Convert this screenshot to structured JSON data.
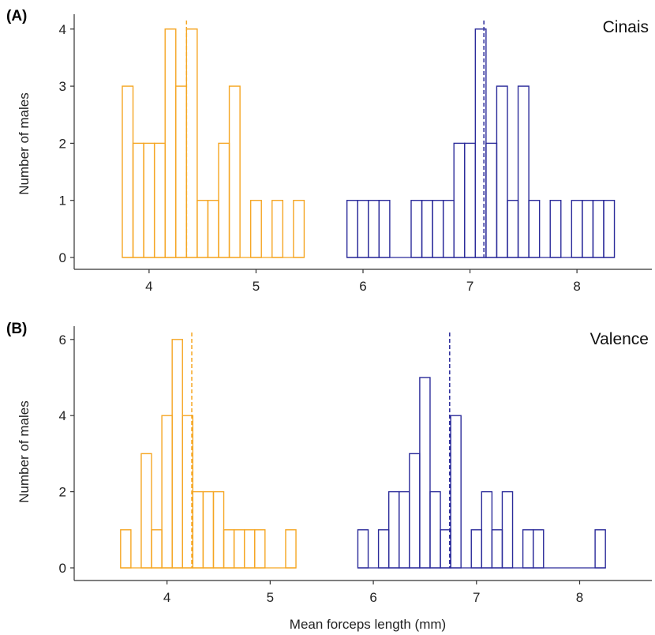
{
  "xlabel": "Mean forceps length (mm)",
  "ylabel": "Number of males",
  "colors": {
    "morph_short": "#F5A623",
    "morph_long": "#2B2B9A",
    "axis": "#333333"
  },
  "chart_data": [
    {
      "type": "bar",
      "panel_tag": "(A)",
      "site": "Cinais",
      "xlim": [
        3.3,
        8.7
      ],
      "ylim": [
        0,
        4.15
      ],
      "xticks": [
        4,
        5,
        6,
        7,
        8
      ],
      "yticks": [
        0,
        1,
        2,
        3,
        4
      ],
      "bin_width": 0.1,
      "series": [
        {
          "color": "#F5A623",
          "mean_line": 4.35,
          "bins": [
            {
              "x0": 3.75,
              "count": 3
            },
            {
              "x0": 3.85,
              "count": 2
            },
            {
              "x0": 3.95,
              "count": 2
            },
            {
              "x0": 4.05,
              "count": 2
            },
            {
              "x0": 4.15,
              "count": 4
            },
            {
              "x0": 4.25,
              "count": 3
            },
            {
              "x0": 4.35,
              "count": 4
            },
            {
              "x0": 4.45,
              "count": 1
            },
            {
              "x0": 4.55,
              "count": 1
            },
            {
              "x0": 4.65,
              "count": 2
            },
            {
              "x0": 4.75,
              "count": 3
            },
            {
              "x0": 4.95,
              "count": 1
            },
            {
              "x0": 5.15,
              "count": 1
            },
            {
              "x0": 5.35,
              "count": 1
            }
          ]
        },
        {
          "color": "#2B2B9A",
          "mean_line": 7.13,
          "bins": [
            {
              "x0": 5.85,
              "count": 1
            },
            {
              "x0": 5.95,
              "count": 1
            },
            {
              "x0": 6.05,
              "count": 1
            },
            {
              "x0": 6.15,
              "count": 1
            },
            {
              "x0": 6.45,
              "count": 1
            },
            {
              "x0": 6.55,
              "count": 1
            },
            {
              "x0": 6.65,
              "count": 1
            },
            {
              "x0": 6.75,
              "count": 1
            },
            {
              "x0": 6.85,
              "count": 2
            },
            {
              "x0": 6.95,
              "count": 2
            },
            {
              "x0": 7.05,
              "count": 4
            },
            {
              "x0": 7.15,
              "count": 2
            },
            {
              "x0": 7.25,
              "count": 3
            },
            {
              "x0": 7.35,
              "count": 1
            },
            {
              "x0": 7.45,
              "count": 3
            },
            {
              "x0": 7.55,
              "count": 1
            },
            {
              "x0": 7.75,
              "count": 1
            },
            {
              "x0": 7.95,
              "count": 1
            },
            {
              "x0": 8.05,
              "count": 1
            },
            {
              "x0": 8.15,
              "count": 1
            },
            {
              "x0": 8.25,
              "count": 1
            }
          ]
        }
      ]
    },
    {
      "type": "bar",
      "panel_tag": "(B)",
      "site": "Valence",
      "xlim": [
        3.1,
        8.7
      ],
      "ylim": [
        0,
        6.25
      ],
      "xticks": [
        4,
        5,
        6,
        7,
        8
      ],
      "yticks": [
        0,
        2,
        4,
        6
      ],
      "bin_width": 0.1,
      "series": [
        {
          "color": "#F5A623",
          "mean_line": 4.24,
          "bins": [
            {
              "x0": 3.55,
              "count": 1
            },
            {
              "x0": 3.75,
              "count": 3
            },
            {
              "x0": 3.85,
              "count": 1
            },
            {
              "x0": 3.95,
              "count": 4
            },
            {
              "x0": 4.05,
              "count": 6
            },
            {
              "x0": 4.15,
              "count": 4
            },
            {
              "x0": 4.25,
              "count": 2
            },
            {
              "x0": 4.35,
              "count": 2
            },
            {
              "x0": 4.45,
              "count": 2
            },
            {
              "x0": 4.55,
              "count": 1
            },
            {
              "x0": 4.65,
              "count": 1
            },
            {
              "x0": 4.75,
              "count": 1
            },
            {
              "x0": 4.85,
              "count": 1
            },
            {
              "x0": 5.15,
              "count": 1
            }
          ]
        },
        {
          "color": "#2B2B9A",
          "mean_line": 6.74,
          "bins": [
            {
              "x0": 5.85,
              "count": 1
            },
            {
              "x0": 6.05,
              "count": 1
            },
            {
              "x0": 6.15,
              "count": 2
            },
            {
              "x0": 6.25,
              "count": 2
            },
            {
              "x0": 6.35,
              "count": 3
            },
            {
              "x0": 6.45,
              "count": 5
            },
            {
              "x0": 6.55,
              "count": 2
            },
            {
              "x0": 6.65,
              "count": 1
            },
            {
              "x0": 6.75,
              "count": 4
            },
            {
              "x0": 6.95,
              "count": 1
            },
            {
              "x0": 7.05,
              "count": 2
            },
            {
              "x0": 7.15,
              "count": 1
            },
            {
              "x0": 7.25,
              "count": 2
            },
            {
              "x0": 7.45,
              "count": 1
            },
            {
              "x0": 7.55,
              "count": 1
            },
            {
              "x0": 8.15,
              "count": 1
            }
          ]
        }
      ]
    }
  ]
}
